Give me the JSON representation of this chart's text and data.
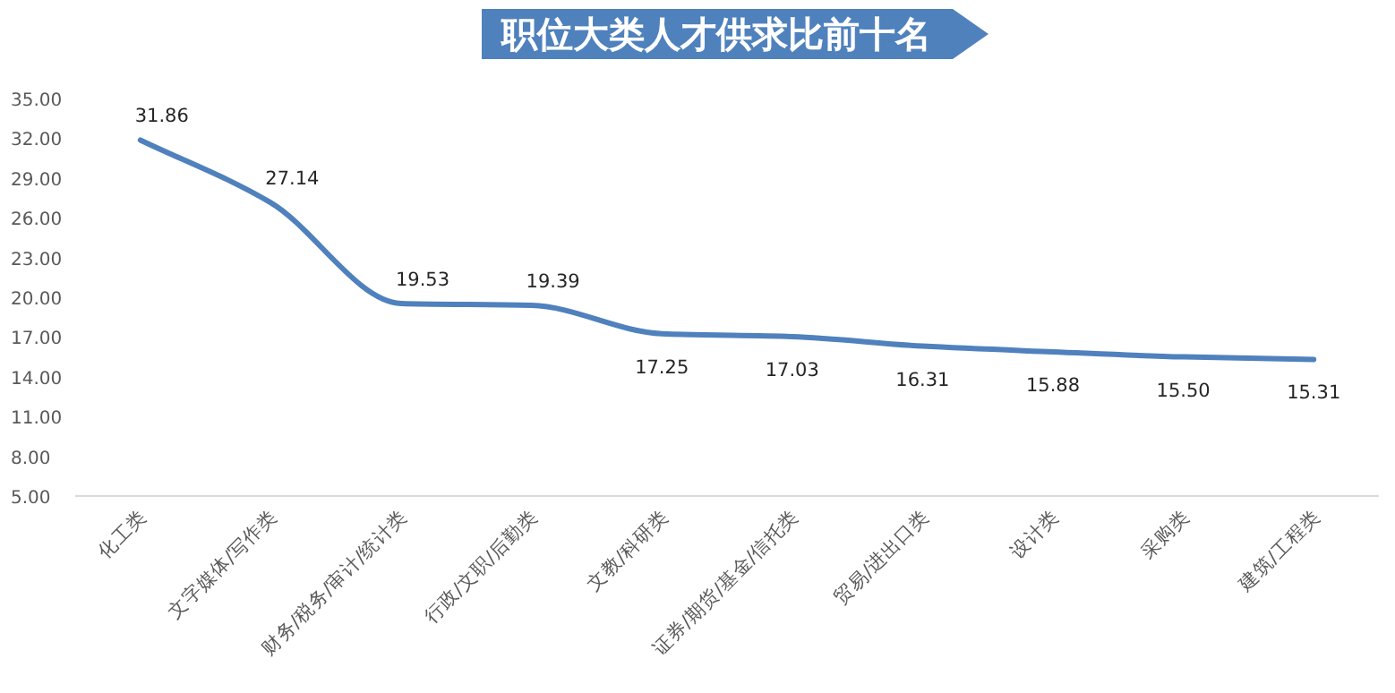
{
  "chart_data": {
    "type": "line",
    "title": "职位大类人才供求比前十名",
    "categories": [
      "化工类",
      "文字媒体/写作类",
      "财务/税务/审计/统计类",
      "行政/文职/后勤类",
      "文教/科研类",
      "证券/期货/基金/信托类",
      "贸易/进出口类",
      "设计类",
      "采购类",
      "建筑/工程类"
    ],
    "series": [
      {
        "color": "#4f81bd",
        "values": [
          31.86,
          27.14,
          19.53,
          19.39,
          17.25,
          17.03,
          16.31,
          15.88,
          15.5,
          15.31
        ],
        "value_labels": [
          "31.86",
          "27.14",
          "19.53",
          "19.39",
          "17.25",
          "17.03",
          "16.31",
          "15.88",
          "15.50",
          "15.31"
        ]
      }
    ],
    "ylim": [
      5,
      35
    ],
    "yticks": [
      {
        "value": 5,
        "label": "5.00"
      },
      {
        "value": 8,
        "label": "8.00"
      },
      {
        "value": 11,
        "label": "11.00"
      },
      {
        "value": 14,
        "label": "14.00"
      },
      {
        "value": 17,
        "label": "17.00"
      },
      {
        "value": 20,
        "label": "20.00"
      },
      {
        "value": 23,
        "label": "23.00"
      },
      {
        "value": 26,
        "label": "26.00"
      },
      {
        "value": 29,
        "label": "29.00"
      },
      {
        "value": 32,
        "label": "32.00"
      },
      {
        "value": 35,
        "label": "35.00"
      }
    ],
    "grid": false,
    "marker": "none",
    "line_style": "solid"
  }
}
